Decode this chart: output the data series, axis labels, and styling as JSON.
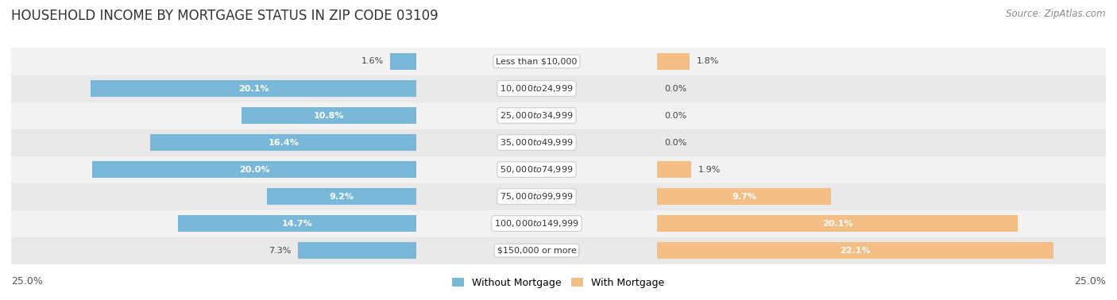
{
  "title": "HOUSEHOLD INCOME BY MORTGAGE STATUS IN ZIP CODE 03109",
  "source": "Source: ZipAtlas.com",
  "categories": [
    "Less than $10,000",
    "$10,000 to $24,999",
    "$25,000 to $34,999",
    "$35,000 to $49,999",
    "$50,000 to $74,999",
    "$75,000 to $99,999",
    "$100,000 to $149,999",
    "$150,000 or more"
  ],
  "without_mortgage": [
    1.6,
    20.1,
    10.8,
    16.4,
    20.0,
    9.2,
    14.7,
    7.3
  ],
  "with_mortgage": [
    1.8,
    0.0,
    0.0,
    0.0,
    1.9,
    9.7,
    20.1,
    22.1
  ],
  "color_without": "#7ab8d9",
  "color_with": "#f5be85",
  "row_colors": [
    "#f2f2f2",
    "#e9e9e9"
  ],
  "axis_limit": 25.0,
  "legend_labels": [
    "Without Mortgage",
    "With Mortgage"
  ],
  "title_fontsize": 12,
  "source_fontsize": 8.5,
  "label_fontsize": 8,
  "pct_fontsize": 8
}
